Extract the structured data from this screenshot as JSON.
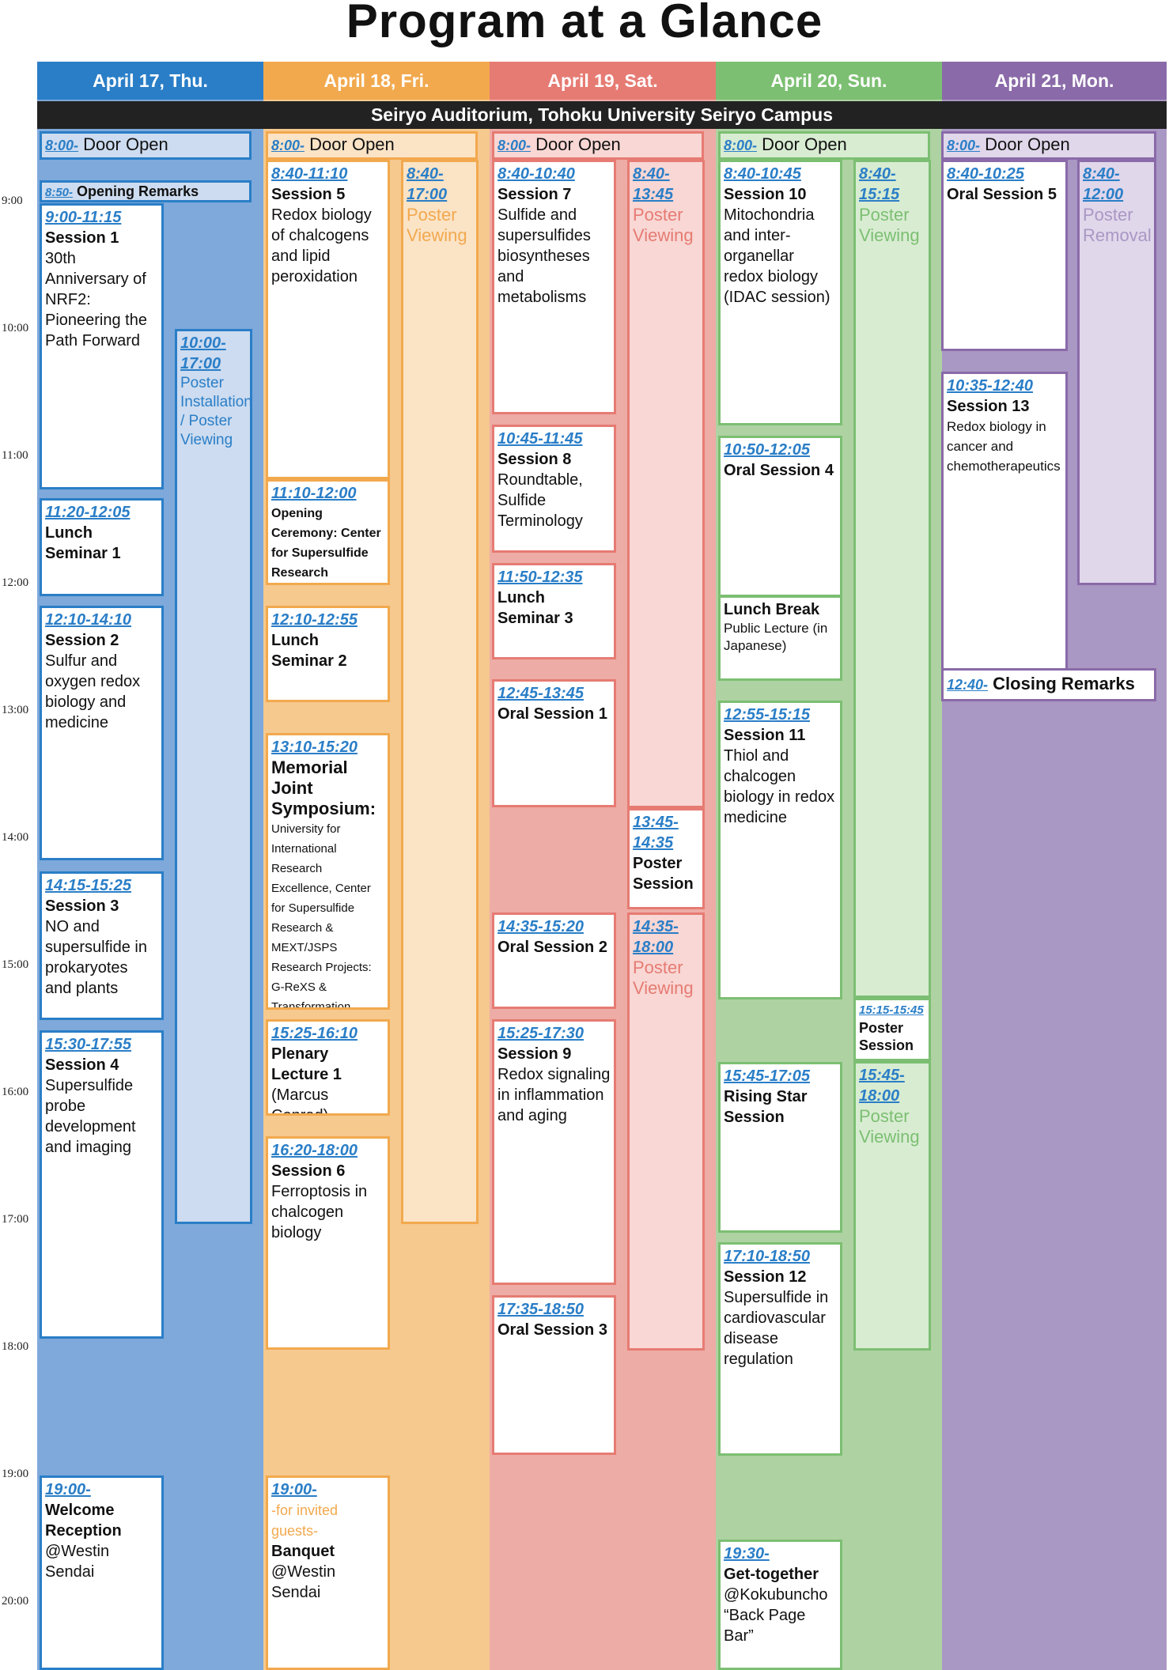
{
  "title": "Program at a Glance",
  "venue": "Seiryo Auditorium, Tohoku University Seiryo Campus",
  "colors": {
    "thu": "#2a7ec7",
    "fri": "#f2a94e",
    "sat": "#e67b73",
    "sun": "#7cbf72",
    "mon": "#8a6aa8",
    "thu_bg": "#7ea9da",
    "fri_bg": "#f6c98f",
    "sat_bg": "#eeaca6",
    "sun_bg": "#aed2a2",
    "mon_bg": "#a997c4"
  },
  "timeline": [
    "9:00",
    "10:00",
    "11:00",
    "12:00",
    "13:00",
    "14:00",
    "15:00",
    "16:00",
    "17:00",
    "18:00",
    "19:00",
    "20:00"
  ],
  "days": [
    {
      "header": "April 17, Thu.",
      "door": {
        "time": "8:00-",
        "label": "Door Open"
      },
      "opening": {
        "time": "8:50-",
        "label": "Opening Remarks"
      },
      "sessions": [
        {
          "time": "9:00-11:15",
          "name": "Session 1",
          "desc": "30th Anniversary of NRF2: Pioneering the Path Forward"
        },
        {
          "time": "11:20-12:05",
          "name": "Lunch Seminar 1",
          "desc": ""
        },
        {
          "time": "12:10-14:10",
          "name": "Session 2",
          "desc": "Sulfur and oxygen redox biology and medicine"
        },
        {
          "time": "14:15-15:25",
          "name": "Session 3",
          "desc": "NO and supersulfide in prokaryotes and plants"
        },
        {
          "time": "15:30-17:55",
          "name": "Session 4",
          "desc": "Supersulfide probe development and imaging"
        },
        {
          "time": "19:00-",
          "name": "Welcome Reception",
          "desc": "@Westin Sendai"
        }
      ],
      "poster": {
        "time1": "10:00-",
        "time2": "17:00",
        "label": "Poster Installation / Poster Viewing"
      }
    },
    {
      "header": "April 18, Fri.",
      "door": {
        "time": "8:00-",
        "label": "Door Open"
      },
      "sessions": [
        {
          "time": "8:40-11:10",
          "name": "Session 5",
          "desc": "Redox biology of chalcogens and lipid peroxidation"
        },
        {
          "time": "11:10-12:00",
          "name": "Opening Ceremony: Center for Supersulfide Research",
          "desc": ""
        },
        {
          "time": "12:10-12:55",
          "name": "Lunch Seminar 2",
          "desc": ""
        },
        {
          "time": "13:10-15:20",
          "name": "Memorial Joint Symposium:",
          "desc": "University for International Research Excellence, Center for Supersulfide Research & MEXT/JSPS Research Projects: G-ReXS & Transformation Research Area"
        },
        {
          "time": "15:25-16:10",
          "name": "Plenary Lecture 1",
          "desc": "(Marcus Conrad)"
        },
        {
          "time": "16:20-18:00",
          "name": "Session 6",
          "desc": "Ferroptosis in chalcogen biology"
        },
        {
          "time": "19:00-",
          "note": "-for invited guests-",
          "name": "Banquet",
          "desc": "@Westin Sendai"
        }
      ],
      "poster": {
        "time1": "8:40-",
        "time2": "17:00",
        "label": "Poster Viewing"
      }
    },
    {
      "header": "April 19, Sat.",
      "door": {
        "time": "8:00-",
        "label": "Door Open"
      },
      "sessions": [
        {
          "time": "8:40-10:40",
          "name": "Session 7",
          "desc": "Sulfide and supersulfides biosyntheses and metabolisms"
        },
        {
          "time": "10:45-11:45",
          "name": "Session 8",
          "desc": "Roundtable, Sulfide Terminology"
        },
        {
          "time": "11:50-12:35",
          "name": "Lunch Seminar 3",
          "desc": ""
        },
        {
          "time": "12:45-13:45",
          "name": "Oral Session 1",
          "desc": ""
        },
        {
          "time": "14:35-15:20",
          "name": "Oral Session 2",
          "desc": ""
        },
        {
          "time": "15:25-17:30",
          "name": "Session 9",
          "desc": "Redox signaling in inflammation and aging"
        },
        {
          "time": "17:35-18:50",
          "name": "Oral Session 3",
          "desc": ""
        }
      ],
      "poster": {
        "time1": "8:40-",
        "time2": "13:45",
        "label": "Poster Viewing"
      },
      "poster_session": {
        "time1": "13:45-",
        "time2": "14:35",
        "label": "Poster Session"
      },
      "poster2": {
        "time1": "14:35-",
        "time2": "18:00",
        "label": "Poster Viewing"
      }
    },
    {
      "header": "April 20, Sun.",
      "door": {
        "time": "8:00-",
        "label": "Door Open"
      },
      "sessions": [
        {
          "time": "8:40-10:45",
          "name": "Session 10",
          "desc": "Mitochondria and inter-organellar redox biology (IDAC session)"
        },
        {
          "time": "10:50-12:05",
          "name": "Oral Session 4",
          "desc": ""
        },
        {
          "time": "",
          "name": "Lunch Break",
          "desc": "Public Lecture (in Japanese)"
        },
        {
          "time": "12:55-15:15",
          "name": "Session 11",
          "desc": "Thiol and chalcogen biology in redox medicine"
        },
        {
          "time": "15:45-17:05",
          "name": "Rising Star Session",
          "desc": ""
        },
        {
          "time": "17:10-18:50",
          "name": "Session 12",
          "desc": "Supersulfide in cardiovascular disease regulation"
        },
        {
          "time": "19:30-",
          "name": "Get-together",
          "desc": "@Kokubuncho “Back Page Bar”"
        }
      ],
      "poster": {
        "time1": "8:40-",
        "time2": "15:15",
        "label": "Poster Viewing"
      },
      "poster_session": {
        "time": "15:15-15:45",
        "label": "Poster Session"
      },
      "poster2": {
        "time1": "15:45-",
        "time2": "18:00",
        "label": "Poster Viewing"
      }
    },
    {
      "header": "April 21, Mon.",
      "door": {
        "time": "8:00-",
        "label": "Door Open"
      },
      "sessions": [
        {
          "time": "8:40-10:25",
          "name": "Oral Session 5",
          "desc": ""
        },
        {
          "time": "10:35-12:40",
          "name": "Session 13",
          "desc": "Redox biology in cancer and chemotherapeutics"
        }
      ],
      "closing": {
        "time": "12:40-",
        "label": "Closing Remarks"
      },
      "poster": {
        "time1": "8:40-",
        "time2": "12:00",
        "label": "Poster Removal"
      }
    }
  ]
}
